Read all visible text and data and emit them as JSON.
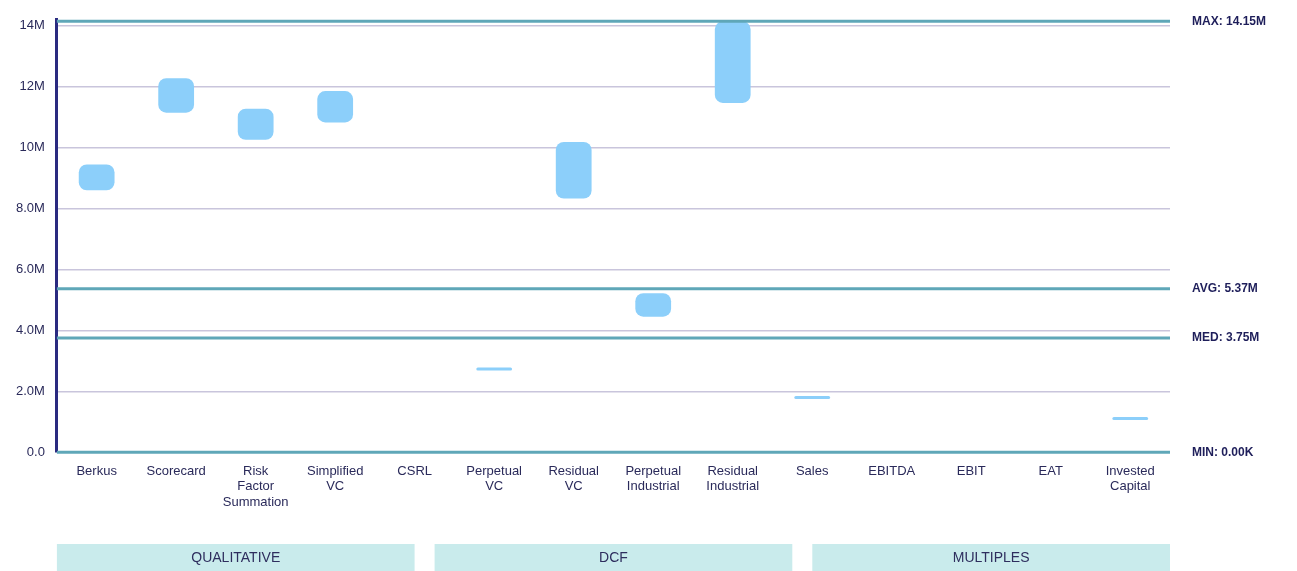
{
  "chart_data": {
    "type": "bar",
    "categories": [
      "Berkus",
      "Scorecard",
      "Risk Factor Summation",
      "Simplified VC",
      "CSRL",
      "Perpetual VC",
      "Residual VC",
      "Perpetual Industrial",
      "Residual Industrial",
      "Sales",
      "EBITDA",
      "EBIT",
      "EAT",
      "Invested Capital"
    ],
    "base": [
      8.6,
      11.15,
      10.26,
      10.83,
      null,
      2.68,
      8.33,
      4.45,
      11.47,
      1.75,
      null,
      null,
      null,
      1.06
    ],
    "values": [
      0.85,
      1.13,
      1.02,
      1.03,
      null,
      0.08,
      1.86,
      0.77,
      2.68,
      0.07,
      null,
      null,
      null,
      0.06
    ],
    "color": "#8ccffa",
    "ylim": [
      0,
      14.2
    ],
    "yticks": [
      {
        "value": 0,
        "label": "0.0"
      },
      {
        "value": 2,
        "label": "2.0M"
      },
      {
        "value": 4,
        "label": "4.0M"
      },
      {
        "value": 6,
        "label": "6.0M"
      },
      {
        "value": 8,
        "label": "8.0M"
      },
      {
        "value": 10,
        "label": "10M"
      },
      {
        "value": 12,
        "label": "12M"
      },
      {
        "value": 14,
        "label": "14M"
      }
    ],
    "grid": "y",
    "legend": false,
    "ref_lines": [
      {
        "axis": "y",
        "value": 14.15,
        "label": "MAX: 14.15M",
        "color": "#5fa7b8"
      },
      {
        "axis": "y",
        "value": 5.37,
        "label": "AVG: 5.37M",
        "color": "#5fa7b8"
      },
      {
        "axis": "y",
        "value": 3.75,
        "label": "MED: 3.75M",
        "color": "#5fa7b8"
      },
      {
        "axis": "y",
        "value": 0,
        "label": "MIN: 0.00K",
        "color": "#5fa7b8"
      }
    ],
    "annotations": [
      "QUALITATIVE",
      "DCF",
      "MULTIPLES"
    ]
  }
}
